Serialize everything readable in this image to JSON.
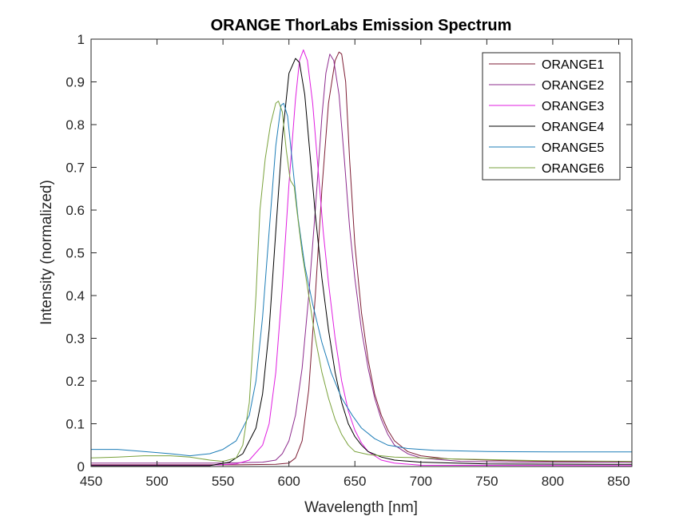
{
  "chart_data": {
    "type": "line",
    "title": "ORANGE ThorLabs Emission Spectrum",
    "xlabel": "Wavelength [nm]",
    "ylabel": "Intensity (normalized)",
    "xlim": [
      450,
      860
    ],
    "ylim": [
      0,
      1
    ],
    "xticks": [
      450,
      500,
      550,
      600,
      650,
      700,
      750,
      800,
      850
    ],
    "yticks": [
      0,
      0.1,
      0.2,
      0.3,
      0.4,
      0.5,
      0.6,
      0.7,
      0.8,
      0.9,
      1
    ],
    "xtick_labels": [
      "450",
      "500",
      "550",
      "600",
      "650",
      "700",
      "750",
      "800",
      "850"
    ],
    "ytick_labels": [
      "0",
      "0.1",
      "0.2",
      "0.3",
      "0.4",
      "0.5",
      "0.6",
      "0.7",
      "0.8",
      "0.9",
      "1"
    ],
    "legend_position": "top-right",
    "grid": false,
    "series": [
      {
        "name": "ORANGE1",
        "color": "#7E1E35",
        "points": [
          [
            450,
            0.004
          ],
          [
            560,
            0.004
          ],
          [
            590,
            0.005
          ],
          [
            600,
            0.008
          ],
          [
            605,
            0.02
          ],
          [
            610,
            0.06
          ],
          [
            615,
            0.18
          ],
          [
            620,
            0.4
          ],
          [
            625,
            0.65
          ],
          [
            630,
            0.85
          ],
          [
            635,
            0.95
          ],
          [
            638,
            0.97
          ],
          [
            640,
            0.965
          ],
          [
            643,
            0.9
          ],
          [
            646,
            0.72
          ],
          [
            650,
            0.52
          ],
          [
            655,
            0.36
          ],
          [
            660,
            0.25
          ],
          [
            665,
            0.17
          ],
          [
            670,
            0.12
          ],
          [
            675,
            0.085
          ],
          [
            680,
            0.06
          ],
          [
            690,
            0.035
          ],
          [
            700,
            0.025
          ],
          [
            720,
            0.018
          ],
          [
            760,
            0.014
          ],
          [
            800,
            0.012
          ],
          [
            860,
            0.01
          ]
        ]
      },
      {
        "name": "ORANGE2",
        "color": "#8E2C8E",
        "points": [
          [
            450,
            0.008
          ],
          [
            550,
            0.008
          ],
          [
            580,
            0.01
          ],
          [
            590,
            0.015
          ],
          [
            595,
            0.03
          ],
          [
            600,
            0.06
          ],
          [
            605,
            0.12
          ],
          [
            610,
            0.23
          ],
          [
            615,
            0.4
          ],
          [
            620,
            0.6
          ],
          [
            625,
            0.82
          ],
          [
            628,
            0.92
          ],
          [
            631,
            0.965
          ],
          [
            634,
            0.95
          ],
          [
            638,
            0.87
          ],
          [
            642,
            0.72
          ],
          [
            646,
            0.56
          ],
          [
            650,
            0.44
          ],
          [
            655,
            0.32
          ],
          [
            660,
            0.23
          ],
          [
            665,
            0.16
          ],
          [
            670,
            0.11
          ],
          [
            675,
            0.075
          ],
          [
            680,
            0.05
          ],
          [
            690,
            0.03
          ],
          [
            700,
            0.02
          ],
          [
            730,
            0.012
          ],
          [
            780,
            0.01
          ],
          [
            860,
            0.01
          ]
        ]
      },
      {
        "name": "ORANGE3",
        "color": "#E01EE0",
        "points": [
          [
            450,
            0.003
          ],
          [
            540,
            0.003
          ],
          [
            560,
            0.006
          ],
          [
            570,
            0.015
          ],
          [
            580,
            0.05
          ],
          [
            585,
            0.1
          ],
          [
            590,
            0.22
          ],
          [
            595,
            0.42
          ],
          [
            600,
            0.66
          ],
          [
            605,
            0.86
          ],
          [
            608,
            0.95
          ],
          [
            611,
            0.975
          ],
          [
            614,
            0.95
          ],
          [
            618,
            0.85
          ],
          [
            622,
            0.7
          ],
          [
            626,
            0.55
          ],
          [
            630,
            0.43
          ],
          [
            635,
            0.3
          ],
          [
            640,
            0.2
          ],
          [
            645,
            0.13
          ],
          [
            650,
            0.085
          ],
          [
            655,
            0.055
          ],
          [
            660,
            0.035
          ],
          [
            670,
            0.015
          ],
          [
            680,
            0.008
          ],
          [
            700,
            0.003
          ],
          [
            860,
            0.002
          ]
        ]
      },
      {
        "name": "ORANGE4",
        "color": "#000000",
        "points": [
          [
            450,
            0.002
          ],
          [
            540,
            0.002
          ],
          [
            555,
            0.01
          ],
          [
            565,
            0.03
          ],
          [
            575,
            0.09
          ],
          [
            580,
            0.17
          ],
          [
            585,
            0.32
          ],
          [
            590,
            0.55
          ],
          [
            595,
            0.77
          ],
          [
            600,
            0.92
          ],
          [
            605,
            0.955
          ],
          [
            608,
            0.945
          ],
          [
            612,
            0.87
          ],
          [
            616,
            0.73
          ],
          [
            620,
            0.59
          ],
          [
            625,
            0.44
          ],
          [
            630,
            0.32
          ],
          [
            635,
            0.22
          ],
          [
            640,
            0.15
          ],
          [
            645,
            0.1
          ],
          [
            650,
            0.07
          ],
          [
            655,
            0.05
          ],
          [
            660,
            0.035
          ],
          [
            670,
            0.022
          ],
          [
            680,
            0.015
          ],
          [
            700,
            0.01
          ],
          [
            750,
            0.006
          ],
          [
            860,
            0.005
          ]
        ]
      },
      {
        "name": "ORANGE5",
        "color": "#1D7DB7",
        "points": [
          [
            450,
            0.04
          ],
          [
            470,
            0.04
          ],
          [
            490,
            0.035
          ],
          [
            510,
            0.03
          ],
          [
            525,
            0.025
          ],
          [
            540,
            0.03
          ],
          [
            550,
            0.04
          ],
          [
            560,
            0.06
          ],
          [
            570,
            0.12
          ],
          [
            575,
            0.2
          ],
          [
            580,
            0.35
          ],
          [
            585,
            0.55
          ],
          [
            590,
            0.75
          ],
          [
            594,
            0.845
          ],
          [
            596,
            0.85
          ],
          [
            599,
            0.82
          ],
          [
            603,
            0.7
          ],
          [
            607,
            0.58
          ],
          [
            612,
            0.47
          ],
          [
            618,
            0.38
          ],
          [
            625,
            0.29
          ],
          [
            632,
            0.22
          ],
          [
            640,
            0.16
          ],
          [
            648,
            0.12
          ],
          [
            655,
            0.09
          ],
          [
            665,
            0.065
          ],
          [
            675,
            0.05
          ],
          [
            690,
            0.042
          ],
          [
            710,
            0.038
          ],
          [
            750,
            0.035
          ],
          [
            800,
            0.034
          ],
          [
            860,
            0.034
          ]
        ]
      },
      {
        "name": "ORANGE6",
        "color": "#7AA23C",
        "points": [
          [
            450,
            0.02
          ],
          [
            470,
            0.022
          ],
          [
            490,
            0.025
          ],
          [
            510,
            0.025
          ],
          [
            525,
            0.022
          ],
          [
            540,
            0.015
          ],
          [
            550,
            0.012
          ],
          [
            560,
            0.02
          ],
          [
            565,
            0.05
          ],
          [
            570,
            0.15
          ],
          [
            575,
            0.4
          ],
          [
            578,
            0.6
          ],
          [
            582,
            0.72
          ],
          [
            586,
            0.8
          ],
          [
            590,
            0.85
          ],
          [
            592,
            0.855
          ],
          [
            595,
            0.83
          ],
          [
            598,
            0.74
          ],
          [
            601,
            0.67
          ],
          [
            604,
            0.655
          ],
          [
            606,
            0.6
          ],
          [
            610,
            0.5
          ],
          [
            615,
            0.4
          ],
          [
            620,
            0.3
          ],
          [
            625,
            0.22
          ],
          [
            630,
            0.16
          ],
          [
            635,
            0.11
          ],
          [
            640,
            0.075
          ],
          [
            645,
            0.05
          ],
          [
            650,
            0.035
          ],
          [
            660,
            0.028
          ],
          [
            680,
            0.022
          ],
          [
            720,
            0.018
          ],
          [
            800,
            0.013
          ],
          [
            860,
            0.012
          ]
        ]
      }
    ]
  }
}
